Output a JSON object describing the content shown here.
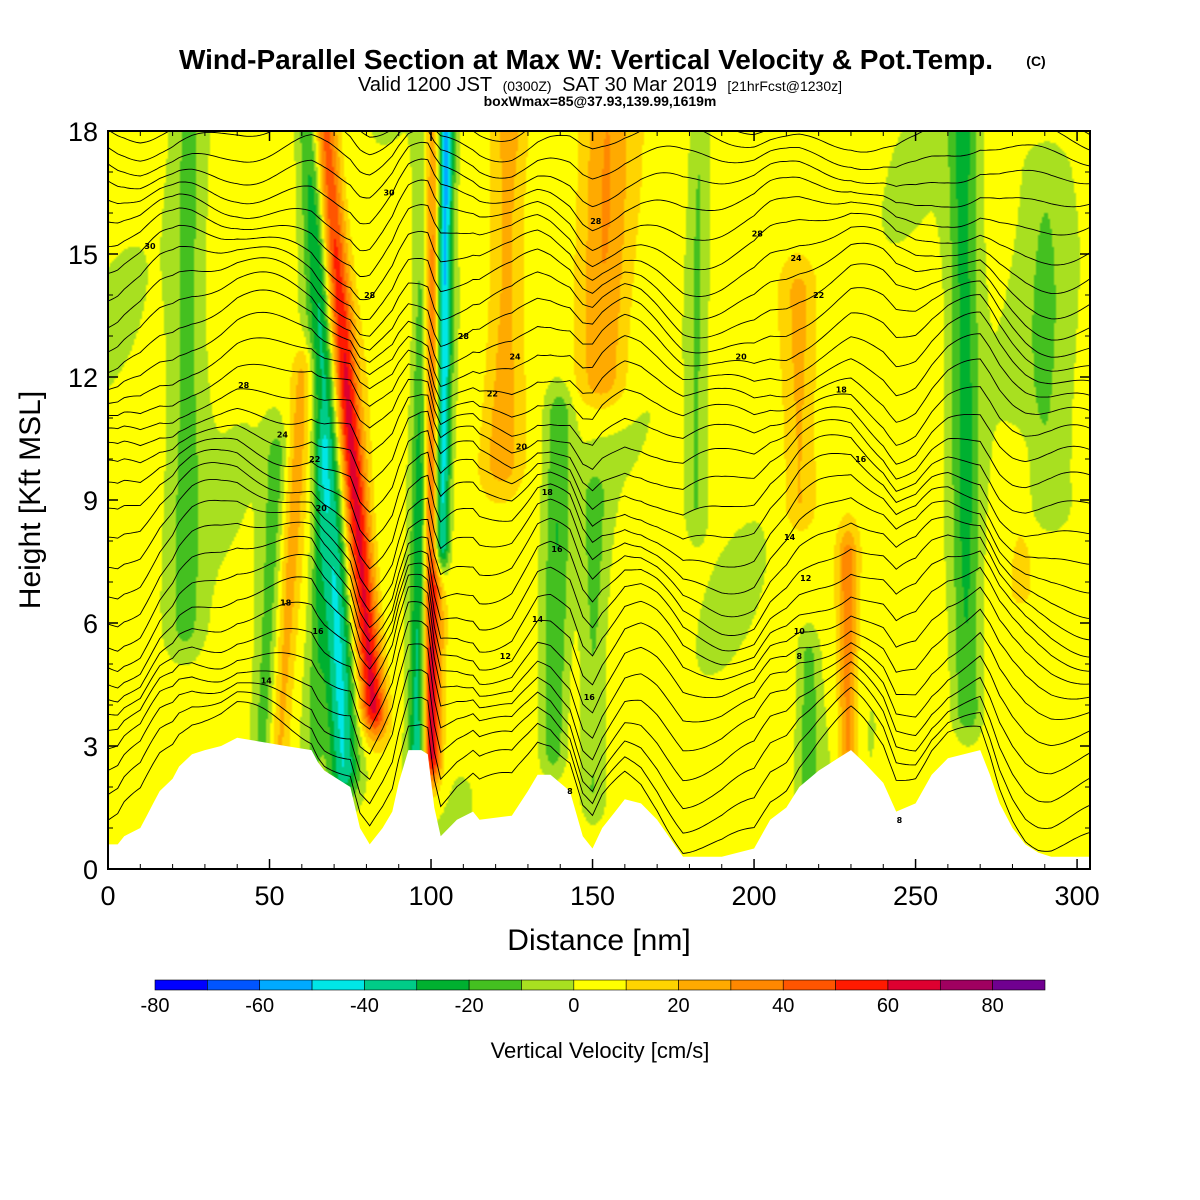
{
  "header": {
    "title": "Wind-Parallel Section at Max W: Vertical Velocity & Pot.Temp.",
    "copyright": "(C)",
    "valid_prefix": "Valid 1200 JST",
    "valid_utc": "(0300Z)",
    "valid_date": "SAT 30 Mar 2019",
    "forecast": "[21hrFcst@1230z]",
    "box_note": "boxWmax=85@37.93,139.99,1619m"
  },
  "colors": {
    "background": "#ffffff",
    "terrain": "#ffffff",
    "contour": "#000000",
    "palette": [
      "#0000ff",
      "#0055ff",
      "#00aaff",
      "#00e6e6",
      "#00cc88",
      "#00b030",
      "#44c020",
      "#a8e020",
      "#ffff00",
      "#ffd400",
      "#ffaa00",
      "#ff8800",
      "#ff5500",
      "#ff1a00",
      "#dd0030",
      "#a00060",
      "#700090"
    ]
  },
  "chart_data": {
    "type": "heatmap",
    "title": "Wind-Parallel Section at Max W: Vertical Velocity & Pot.Temp.",
    "xlabel": "Distance [nm]",
    "ylabel": "Height [Kft MSL]",
    "xlim": [
      0,
      304
    ],
    "ylim": [
      0,
      18
    ],
    "xticks": [
      0,
      50,
      100,
      150,
      200,
      250,
      300
    ],
    "yticks": [
      0,
      3,
      6,
      9,
      12,
      15,
      18
    ],
    "colorbar": {
      "label": "Vertical Velocity [cm/s]",
      "levels": [
        -80,
        -70,
        -60,
        -50,
        -40,
        -30,
        -20,
        -10,
        0,
        10,
        20,
        30,
        40,
        50,
        60,
        70,
        80,
        90
      ],
      "tick_labels": [
        -80,
        -60,
        -40,
        -20,
        0,
        20,
        40,
        60,
        80
      ]
    },
    "vertical_velocity_features": [
      {
        "x": 73,
        "z_bottom": 2.5,
        "z_top": 18,
        "lean_nm_per_kft": -0.6,
        "width_nm": 4.5,
        "peak_cm_s": -42
      },
      {
        "x": 82,
        "z_bottom": 4,
        "z_top": 18,
        "lean_nm_per_kft": -1.1,
        "width_nm": 4,
        "peak_cm_s": 62
      },
      {
        "x": 96,
        "z_bottom": 2.5,
        "z_top": 18,
        "lean_nm_per_kft": 0.2,
        "width_nm": 3,
        "peak_cm_s": -48
      },
      {
        "x": 100,
        "z_bottom": 2.8,
        "z_top": 18,
        "lean_nm_per_kft": 0,
        "width_nm": 3,
        "peak_cm_s": 68
      },
      {
        "x": 103,
        "z_bottom": 8,
        "z_top": 18,
        "lean_nm_per_kft": 0.15,
        "width_nm": 2.5,
        "peak_cm_s": -62
      },
      {
        "x": 24,
        "z_bottom": 6,
        "z_top": 18,
        "lean_nm_per_kft": 0.1,
        "width_nm": 5,
        "peak_cm_s": -16
      },
      {
        "x": 53,
        "z_bottom": 3,
        "z_top": 12,
        "lean_nm_per_kft": 0.8,
        "width_nm": 3.5,
        "peak_cm_s": 22
      },
      {
        "x": 48,
        "z_bottom": 3,
        "z_top": 10,
        "lean_nm_per_kft": 0.6,
        "width_nm": 3.5,
        "peak_cm_s": -18
      },
      {
        "x": 64,
        "z_bottom": 3,
        "z_top": 10,
        "lean_nm_per_kft": 0.3,
        "width_nm": 2.5,
        "peak_cm_s": -14
      },
      {
        "x": 138,
        "z_bottom": 3,
        "z_top": 11,
        "lean_nm_per_kft": 0.2,
        "width_nm": 4,
        "peak_cm_s": -22
      },
      {
        "x": 150,
        "z_bottom": 2,
        "z_top": 9,
        "lean_nm_per_kft": 0.1,
        "width_nm": 4,
        "peak_cm_s": -16
      },
      {
        "x": 122,
        "z_bottom": 10,
        "z_top": 18,
        "lean_nm_per_kft": 0.3,
        "width_nm": 6,
        "peak_cm_s": 22
      },
      {
        "x": 153,
        "z_bottom": 12,
        "z_top": 18,
        "lean_nm_per_kft": 0.2,
        "width_nm": 8,
        "peak_cm_s": 26
      },
      {
        "x": 182,
        "z_bottom": 9,
        "z_top": 18,
        "lean_nm_per_kft": 0.1,
        "width_nm": 3,
        "peak_cm_s": -14
      },
      {
        "x": 214,
        "z_bottom": 9,
        "z_top": 14,
        "lean_nm_per_kft": 0,
        "width_nm": 5,
        "peak_cm_s": 18
      },
      {
        "x": 229,
        "z_bottom": 3,
        "z_top": 7.5,
        "lean_nm_per_kft": 0,
        "width_nm": 3,
        "peak_cm_s": 32
      },
      {
        "x": 217,
        "z_bottom": 2,
        "z_top": 5,
        "lean_nm_per_kft": 0,
        "width_nm": 3,
        "peak_cm_s": -18
      },
      {
        "x": 266,
        "z_bottom": 4,
        "z_top": 18,
        "lean_nm_per_kft": -0.1,
        "width_nm": 4.5,
        "peak_cm_s": -26
      },
      {
        "x": 290,
        "z_bottom": 9,
        "z_top": 17,
        "lean_nm_per_kft": 0,
        "width_nm": 7,
        "peak_cm_s": -12
      },
      {
        "x": 283,
        "z_bottom": 7,
        "z_top": 10,
        "lean_nm_per_kft": 0,
        "width_nm": 5,
        "peak_cm_s": 6
      }
    ],
    "terrain_height_kft": {
      "x": [
        0,
        3,
        5,
        10,
        12,
        14,
        16,
        20,
        22,
        26,
        30,
        35,
        40,
        55,
        63,
        65,
        67,
        75,
        78,
        81,
        85,
        88,
        90,
        93,
        97,
        99,
        101,
        103,
        108,
        113,
        115,
        125,
        130,
        133,
        137,
        143,
        147,
        150,
        153,
        157,
        160,
        165,
        170,
        178,
        190,
        200,
        205,
        210,
        214,
        220,
        226,
        230,
        234,
        240,
        244,
        250,
        255,
        260,
        270,
        273,
        276,
        280,
        284,
        288,
        292,
        296,
        300,
        304
      ],
      "z": [
        0.6,
        0.6,
        0.8,
        1.0,
        1.3,
        1.6,
        1.9,
        2.2,
        2.5,
        2.8,
        2.9,
        3.0,
        3.2,
        3.0,
        2.9,
        2.6,
        2.4,
        2.0,
        1.0,
        0.6,
        1.0,
        1.4,
        2.1,
        2.9,
        2.9,
        2.8,
        1.5,
        0.8,
        1.2,
        1.4,
        1.2,
        1.3,
        1.9,
        2.3,
        2.3,
        1.9,
        0.8,
        0.5,
        1.0,
        1.4,
        1.7,
        1.6,
        1.2,
        0.3,
        0.3,
        0.5,
        1.2,
        1.5,
        2.0,
        2.4,
        2.7,
        2.9,
        2.6,
        2.1,
        1.4,
        1.6,
        2.3,
        2.7,
        2.9,
        2.3,
        1.6,
        1.0,
        0.6,
        0.4,
        0.3,
        0.3,
        0.3,
        0.3
      ]
    },
    "theta_contours": {
      "levels": [
        8,
        10,
        12,
        14,
        16,
        18,
        20,
        22,
        24,
        26,
        28,
        30
      ],
      "labels": [
        {
          "text": "30",
          "x": 13,
          "z": 15.2
        },
        {
          "text": "28",
          "x": 42,
          "z": 11.8
        },
        {
          "text": "24",
          "x": 54,
          "z": 10.6
        },
        {
          "text": "22",
          "x": 64,
          "z": 10.0
        },
        {
          "text": "20",
          "x": 66,
          "z": 8.8
        },
        {
          "text": "18",
          "x": 55,
          "z": 6.5
        },
        {
          "text": "16",
          "x": 65,
          "z": 5.8
        },
        {
          "text": "14",
          "x": 49,
          "z": 4.6
        },
        {
          "text": "30",
          "x": 87,
          "z": 16.5
        },
        {
          "text": "28",
          "x": 81,
          "z": 14.0
        },
        {
          "text": "28",
          "x": 110,
          "z": 13.0
        },
        {
          "text": "24",
          "x": 126,
          "z": 12.5
        },
        {
          "text": "22",
          "x": 119,
          "z": 11.6
        },
        {
          "text": "20",
          "x": 128,
          "z": 10.3
        },
        {
          "text": "18",
          "x": 136,
          "z": 9.2
        },
        {
          "text": "16",
          "x": 139,
          "z": 7.8
        },
        {
          "text": "14",
          "x": 133,
          "z": 6.1
        },
        {
          "text": "12",
          "x": 123,
          "z": 5.2
        },
        {
          "text": "16",
          "x": 149,
          "z": 4.2
        },
        {
          "text": "8",
          "x": 143,
          "z": 1.9
        },
        {
          "text": "28",
          "x": 151,
          "z": 15.8
        },
        {
          "text": "28",
          "x": 201,
          "z": 15.5
        },
        {
          "text": "24",
          "x": 213,
          "z": 14.9
        },
        {
          "text": "22",
          "x": 220,
          "z": 14.0
        },
        {
          "text": "20",
          "x": 196,
          "z": 12.5
        },
        {
          "text": "18",
          "x": 227,
          "z": 11.7
        },
        {
          "text": "16",
          "x": 233,
          "z": 10.0
        },
        {
          "text": "14",
          "x": 211,
          "z": 8.1
        },
        {
          "text": "12",
          "x": 216,
          "z": 7.1
        },
        {
          "text": "10",
          "x": 214,
          "z": 5.8
        },
        {
          "text": "8",
          "x": 214,
          "z": 5.2
        },
        {
          "text": "8",
          "x": 245,
          "z": 1.2
        }
      ]
    }
  }
}
